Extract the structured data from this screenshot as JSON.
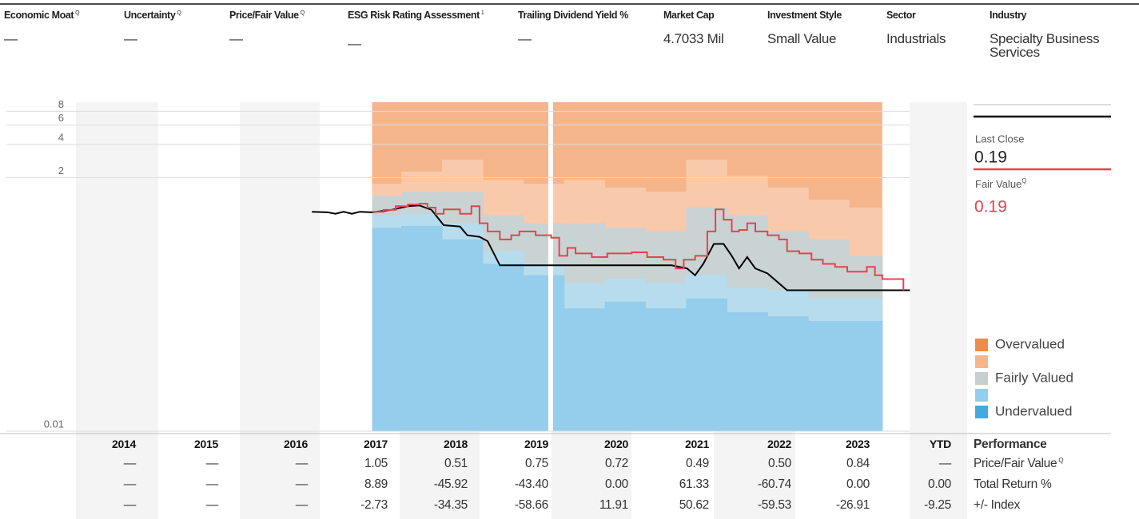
{
  "header": {
    "columns": [
      {
        "label": "Economic Moat",
        "note": "Q",
        "value": "—"
      },
      {
        "label": "Uncertainty",
        "note": "Q",
        "value": "—"
      },
      {
        "label": "Price/Fair Value",
        "note": "Q",
        "value": "—"
      },
      {
        "label": "ESG Risk Rating Assessment",
        "note": "1",
        "value": "—"
      },
      {
        "label": "Trailing Dividend Yield %",
        "value": "—"
      },
      {
        "label": "Market Cap",
        "value": "4.7033 Mil"
      },
      {
        "label": "Investment Style",
        "value": "Small Value"
      },
      {
        "label": "Sector",
        "value": "Industrials"
      },
      {
        "label": "Industry",
        "value": "Specialty Business Services"
      }
    ]
  },
  "chart_data": {
    "type": "line",
    "yscale": "log",
    "ylim": [
      0.01,
      10
    ],
    "yticks": [
      0.01,
      2,
      4,
      6,
      8
    ],
    "xlim": [
      2014,
      2024.3
    ],
    "grid": true,
    "series": [
      {
        "color": "#000000",
        "step": false,
        "x": [
          2016.9,
          2017.09,
          2017.19,
          2017.29,
          2017.39,
          2017.49,
          2017.64,
          2017.88,
          2018.08,
          2018.22,
          2018.37,
          2018.52,
          2018.72,
          2018.81,
          2018.96,
          2019.06,
          2019.21,
          2019.55,
          2019.94,
          2021.32,
          2021.51,
          2021.61,
          2021.71,
          2021.84,
          2021.96,
          2022.06,
          2022.15,
          2022.25,
          2022.35,
          2022.5,
          2022.74,
          2024.25
        ],
        "values": [
          0.98,
          0.97,
          0.94,
          0.98,
          0.94,
          0.98,
          0.97,
          1.02,
          1.1,
          1.12,
          1.02,
          0.74,
          0.72,
          0.6,
          0.58,
          0.53,
          0.32,
          0.32,
          0.32,
          0.32,
          0.3,
          0.26,
          0.33,
          0.5,
          0.5,
          0.39,
          0.3,
          0.38,
          0.3,
          0.27,
          0.19,
          0.19
        ]
      },
      {
        "color": "#e8424d",
        "step": true,
        "x": [
          2017.64,
          2017.78,
          2017.93,
          2018.08,
          2018.22,
          2018.32,
          2018.42,
          2018.52,
          2018.72,
          2018.86,
          2018.96,
          2019.06,
          2019.21,
          2019.35,
          2019.45,
          2019.65,
          2019.84,
          2019.94,
          2020.04,
          2020.14,
          2020.34,
          2020.53,
          2020.83,
          2021.02,
          2021.22,
          2021.37,
          2021.47,
          2021.61,
          2021.76,
          2021.86,
          2021.96,
          2022.06,
          2022.15,
          2022.25,
          2022.35,
          2022.5,
          2022.64,
          2022.74,
          2022.89,
          2023.04,
          2023.18,
          2023.33,
          2023.48,
          2023.63,
          2023.72,
          2023.82,
          2023.91,
          2024.17
        ],
        "values": [
          0.98,
          1.02,
          1.1,
          1.14,
          1.16,
          1.07,
          0.94,
          1.03,
          0.94,
          1.1,
          0.77,
          0.65,
          0.55,
          0.6,
          0.65,
          0.6,
          0.57,
          0.39,
          0.46,
          0.41,
          0.38,
          0.41,
          0.42,
          0.38,
          0.36,
          0.3,
          0.36,
          0.39,
          0.65,
          1.03,
          0.83,
          0.65,
          0.67,
          0.77,
          0.65,
          0.6,
          0.55,
          0.43,
          0.41,
          0.36,
          0.33,
          0.31,
          0.28,
          0.28,
          0.31,
          0.26,
          0.24,
          0.19
        ]
      }
    ],
    "bands": {
      "top_color": "#f5b58b",
      "x": [
        2017.64,
        2018.0,
        2018.5,
        2019.0,
        2019.5,
        2020.0,
        2020.5,
        2021.0,
        2021.5,
        2022.0,
        2022.5,
        2023.0,
        2023.5,
        2023.91
      ],
      "series": [
        {
          "color": "#f8c9aa",
          "values": [
            1.76,
            2.27,
            2.91,
            1.92,
            1.76,
            1.92,
            1.62,
            1.49,
            2.91,
            2.08,
            1.62,
            1.26,
            1.07
          ]
        },
        {
          "color": "#c9d3d4",
          "values": [
            1.37,
            1.49,
            1.49,
            0.91,
            0.77,
            0.77,
            0.7,
            0.65,
            1.07,
            0.91,
            0.65,
            0.55,
            0.39
          ]
        },
        {
          "color": "#b7dcee",
          "values": [
            0.91,
            0.94,
            0.77,
            0.43,
            0.33,
            0.22,
            0.24,
            0.22,
            0.26,
            0.2,
            0.19,
            0.16,
            0.16
          ]
        },
        {
          "color": "#95cdec",
          "values": [
            0.7,
            0.73,
            0.55,
            0.33,
            0.26,
            0.13,
            0.15,
            0.13,
            0.16,
            0.12,
            0.11,
            0.1,
            0.1
          ]
        }
      ]
    },
    "legend": [
      {
        "name": "Overvalued",
        "color": "#ef8c47"
      },
      {
        "name": null,
        "color": "#f6b58b"
      },
      {
        "name": "Fairly Valued",
        "color": "#c5cfd0"
      },
      {
        "name": null,
        "color": "#94cdee"
      },
      {
        "name": "Undervalued",
        "color": "#45a9dc"
      }
    ]
  },
  "quote": {
    "last_close_label": "Last Close",
    "last_close": "0.19",
    "fair_value_label": "Fair Value",
    "fair_value_note": "Q",
    "fair_value": "0.19"
  },
  "performance": {
    "title": "Performance",
    "columns": [
      "2014",
      "2015",
      "2016",
      "2017",
      "2018",
      "2019",
      "2020",
      "2021",
      "2022",
      "2023",
      "YTD"
    ],
    "rows": [
      {
        "label": "Price/Fair Value",
        "note": "Q",
        "cells": [
          "—",
          "—",
          "—",
          "1.05",
          "0.51",
          "0.75",
          "0.72",
          "0.49",
          "0.50",
          "0.84",
          "—"
        ]
      },
      {
        "label": "Total Return %",
        "cells": [
          "—",
          "—",
          "—",
          "8.89",
          "-45.92",
          "-43.40",
          "0.00",
          "61.33",
          "-60.74",
          "0.00",
          "0.00"
        ]
      },
      {
        "label": "+/- Index",
        "cells": [
          "—",
          "—",
          "—",
          "-2.73",
          "-34.35",
          "-58.66",
          "11.91",
          "50.62",
          "-59.53",
          "-26.91",
          "-9.25"
        ]
      }
    ]
  }
}
